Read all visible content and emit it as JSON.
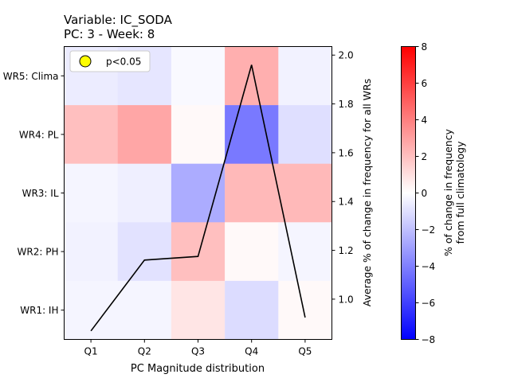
{
  "chart_data": {
    "type": "heatmap",
    "title_line1": "Variable: IC_SODA",
    "title_line2": "PC: 3 - Week: 8",
    "xlabel": "PC Magnitude distribution",
    "ylabel_right": "Average % of change in frequency for all WRs",
    "colorbar_label_line1": "% of change in frequency",
    "colorbar_label_line2": "from full climatology",
    "x_categories": [
      "Q1",
      "Q2",
      "Q3",
      "Q4",
      "Q5"
    ],
    "y_categories": [
      "WR5: Clima",
      "WR4: PL",
      "WR3: IL",
      "WR2: PH",
      "WR1: IH"
    ],
    "heatmap_values": [
      [
        -0.6,
        -0.8,
        -0.2,
        2.5,
        -0.4
      ],
      [
        2.0,
        2.8,
        0.2,
        -4.2,
        -1.0
      ],
      [
        -0.3,
        -0.5,
        -2.6,
        2.2,
        2.2
      ],
      [
        -0.4,
        -0.9,
        2.0,
        0.2,
        -0.3
      ],
      [
        -0.3,
        -0.3,
        0.8,
        -1.1,
        0.2
      ]
    ],
    "colorbar_range": [
      -8,
      8
    ],
    "colorbar_ticks": [
      "8",
      "6",
      "4",
      "2",
      "0",
      "−2",
      "−4",
      "−6",
      "−8"
    ],
    "colorscale": "bwr",
    "line_series": {
      "x": [
        "Q1",
        "Q2",
        "Q3",
        "Q4",
        "Q5"
      ],
      "values": [
        0.87,
        1.16,
        1.175,
        1.96,
        0.925
      ],
      "color": "#000000"
    },
    "right_axis_range": [
      0.835,
      2.035
    ],
    "right_axis_ticks": [
      "1.0",
      "1.2",
      "1.4",
      "1.6",
      "1.8",
      "2.0"
    ],
    "right_axis_tick_values": [
      1.0,
      1.2,
      1.4,
      1.6,
      1.8,
      2.0
    ],
    "legend": {
      "label": "p<0.05",
      "marker_color": "#ffff00",
      "position": "upper-left"
    }
  }
}
